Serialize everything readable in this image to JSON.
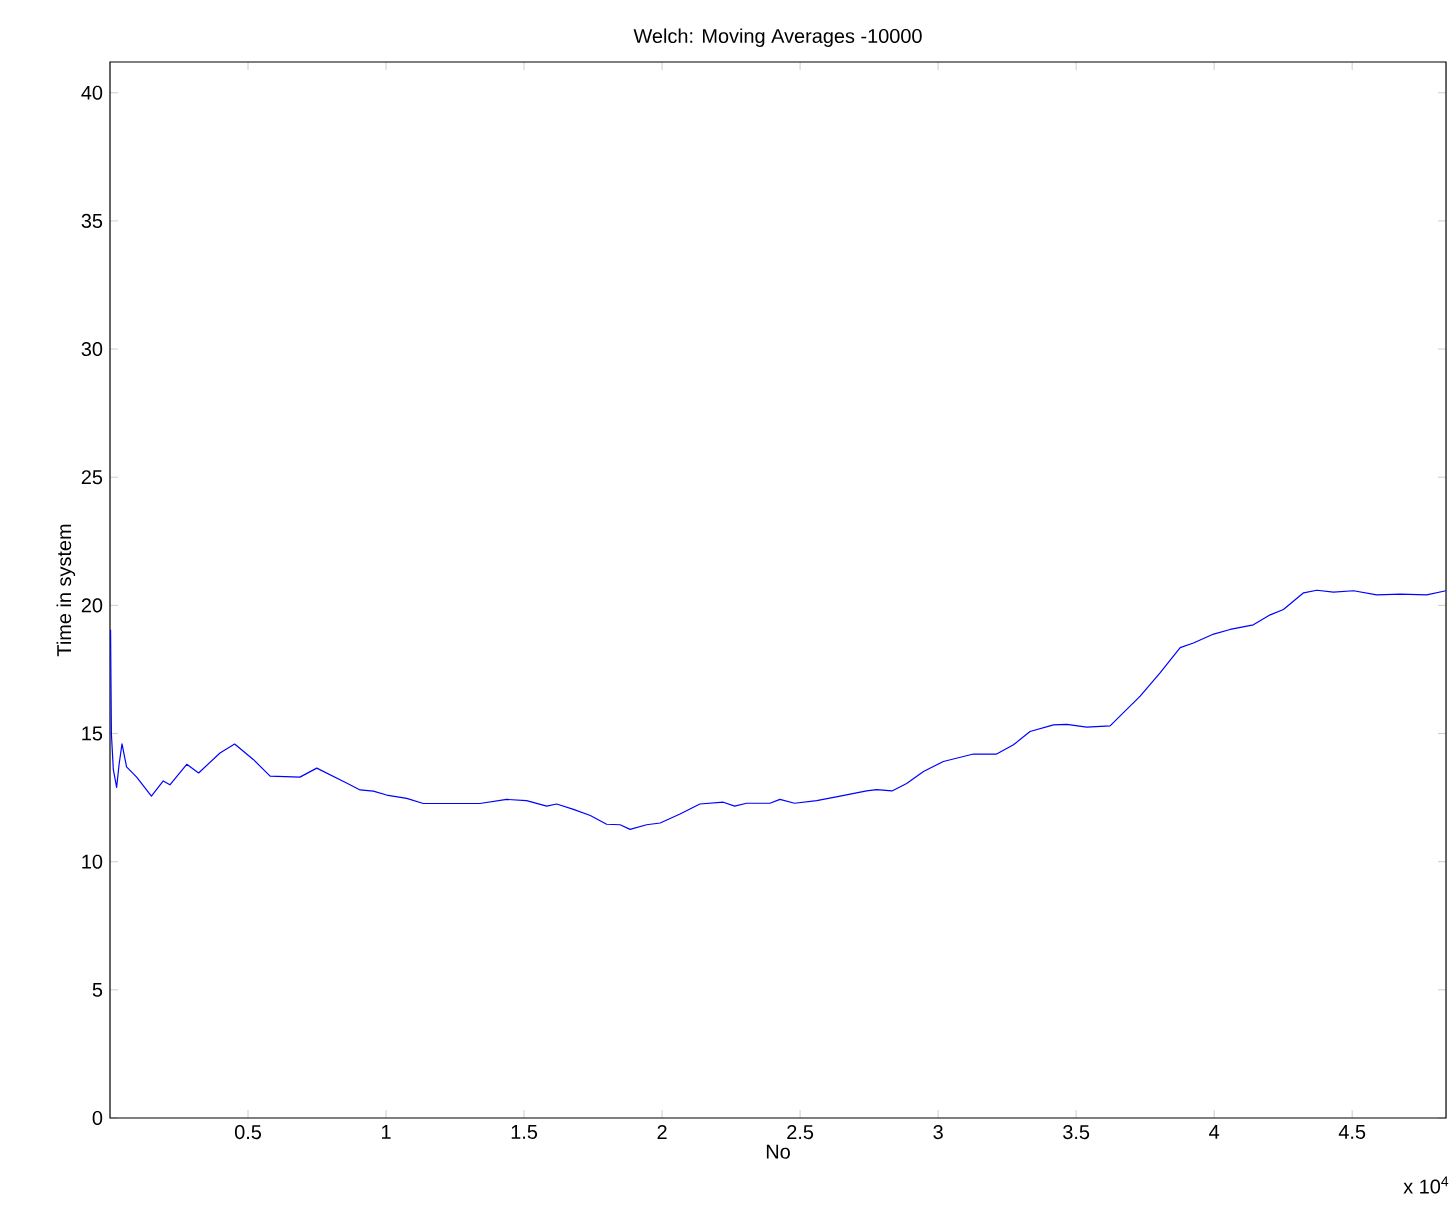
{
  "chart_data": {
    "type": "line",
    "title": "Welch: Moving Averages -10000",
    "xlabel": "No",
    "ylabel": "Time in system",
    "annotations": [
      "x 10$^{4}$"
    ],
    "xlim": [
      0,
      4.84
    ],
    "ylim": [
      0,
      41.2
    ],
    "xticks": [
      0.5,
      1,
      1.5,
      2,
      2.5,
      3,
      3.5,
      4,
      4.5
    ],
    "yticks": [
      0,
      5,
      10,
      15,
      20,
      25,
      30,
      35,
      40
    ],
    "grid": false,
    "marker": "none",
    "line_style": "solid",
    "series": [
      {
        "color": "#0000ff",
        "x": [
          0.002,
          0.005,
          0.012,
          0.024,
          0.033,
          0.0435,
          0.06,
          0.0965,
          0.15,
          0.193,
          0.217,
          0.278,
          0.321,
          0.3985,
          0.4515,
          0.519,
          0.58,
          0.688,
          0.749,
          0.857,
          0.906,
          0.954,
          1.002,
          1.075,
          1.135,
          1.34,
          1.437,
          1.509,
          1.582,
          1.618,
          1.679,
          1.74,
          1.799,
          1.848,
          1.884,
          1.944,
          1.993,
          2.065,
          2.137,
          2.222,
          2.263,
          2.306,
          2.391,
          2.427,
          2.48,
          2.56,
          2.645,
          2.741,
          2.777,
          2.833,
          2.886,
          2.947,
          3.019,
          3.128,
          3.212,
          3.273,
          3.333,
          3.418,
          3.466,
          3.538,
          3.623,
          3.732,
          3.804,
          3.877,
          3.925,
          3.998,
          4.058,
          4.142,
          4.203,
          4.251,
          4.324,
          4.372,
          4.432,
          4.505,
          4.589,
          4.674,
          4.77,
          4.84
        ],
        "values": [
          19.05,
          15.0,
          13.6,
          12.9,
          13.8,
          14.6,
          13.7,
          13.3,
          12.56,
          13.15,
          13.0,
          13.8,
          13.46,
          14.24,
          14.59,
          13.99,
          13.34,
          13.3,
          13.65,
          13.07,
          12.8,
          12.75,
          12.6,
          12.47,
          12.27,
          12.27,
          12.43,
          12.38,
          12.17,
          12.25,
          12.04,
          11.8,
          11.46,
          11.44,
          11.26,
          11.44,
          11.51,
          11.86,
          12.25,
          12.32,
          12.17,
          12.28,
          12.28,
          12.43,
          12.28,
          12.38,
          12.56,
          12.76,
          12.81,
          12.76,
          13.05,
          13.52,
          13.91,
          14.2,
          14.2,
          14.56,
          15.08,
          15.34,
          15.36,
          15.25,
          15.3,
          16.46,
          17.37,
          18.35,
          18.53,
          18.88,
          19.06,
          19.24,
          19.63,
          19.84,
          20.49,
          20.59,
          20.52,
          20.57,
          20.41,
          20.44,
          20.41,
          20.57
        ]
      }
    ]
  }
}
